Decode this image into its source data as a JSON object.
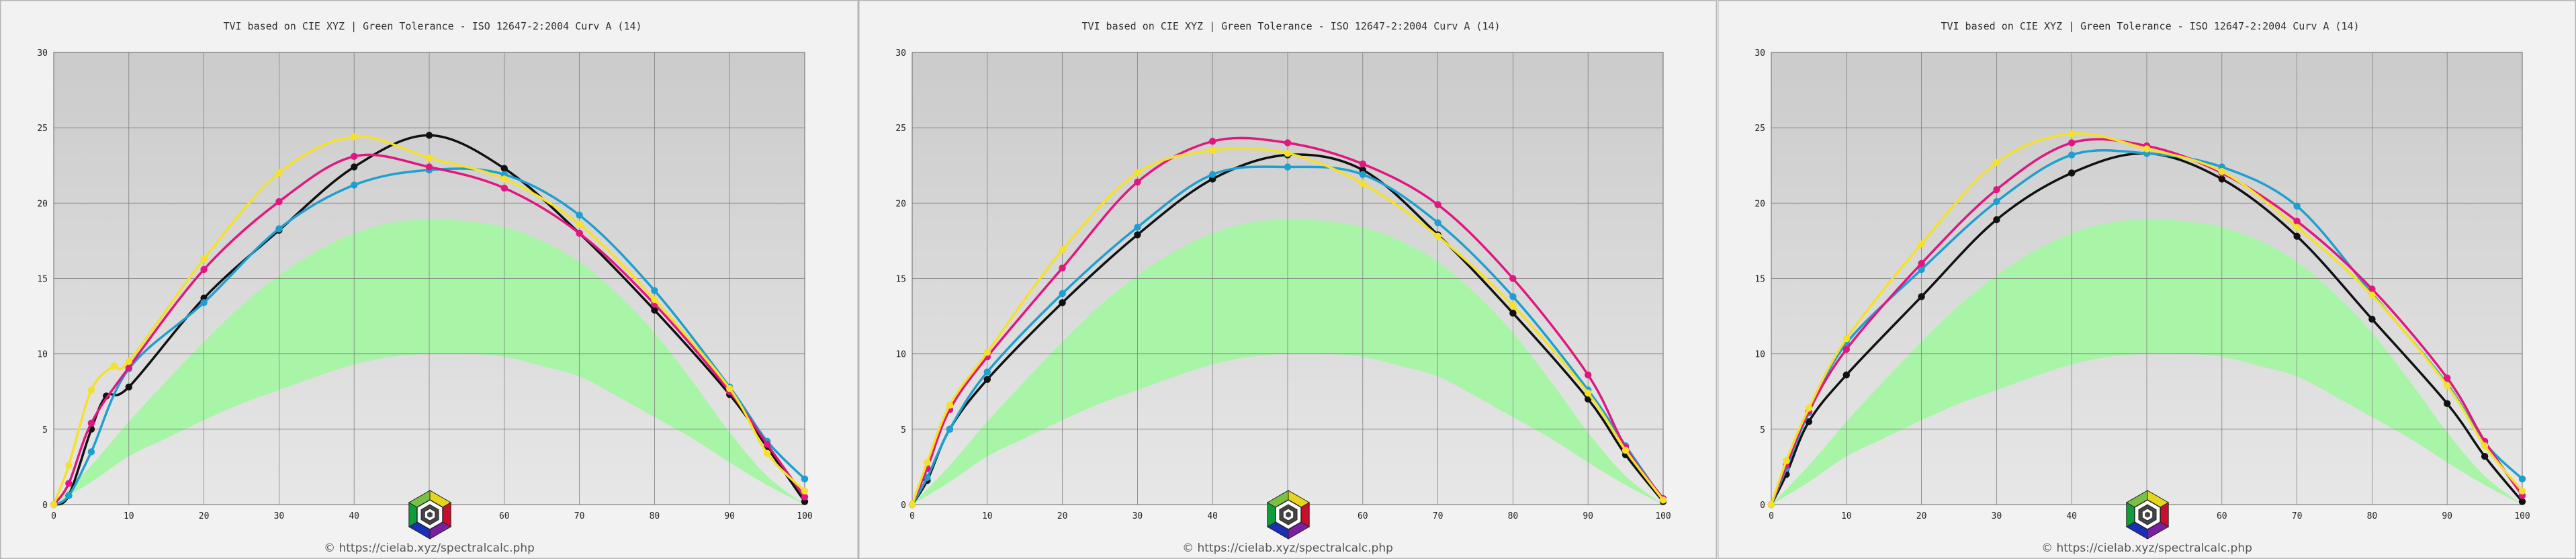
{
  "colors": {
    "cyan": "#1f9fd0",
    "magenta": "#e0177f",
    "yellow": "#f4e12a",
    "black": "#111111",
    "tolerance_band": "#a8f5a8",
    "plot_bg_top": "#cbcbcb",
    "plot_bg_bottom": "#e7e7e7"
  },
  "logo": {
    "icon": "hexagon-cmy-rgb-logo-icon"
  },
  "chart_data": [
    {
      "type": "line",
      "title": "TVI based on CIE XYZ  |  Green Tolerance - ISO 12647-2:2004 Curv A (14)",
      "copyright": "© https://cielab.xyz/spectralcalc.php",
      "xlim": [
        0,
        100
      ],
      "ylim": [
        0,
        30
      ],
      "x_ticks": [
        "0",
        "10",
        "20",
        "30",
        "40",
        "50",
        "60",
        "70",
        "80",
        "90",
        "100"
      ],
      "y_ticks": [
        "0",
        "5",
        "10",
        "15",
        "20",
        "25",
        "30"
      ],
      "grid": true,
      "tolerance_band": {
        "x": [
          0,
          5,
          10,
          15,
          20,
          25,
          30,
          35,
          40,
          45,
          50,
          55,
          60,
          65,
          70,
          75,
          80,
          85,
          90,
          95,
          100
        ],
        "lower": [
          0,
          1.5,
          3.2,
          4.4,
          5.6,
          6.7,
          7.6,
          8.5,
          9.3,
          9.8,
          10.0,
          10.0,
          9.8,
          9.2,
          8.5,
          7.2,
          5.8,
          4.4,
          2.8,
          1.3,
          0
        ],
        "upper": [
          0,
          2.6,
          5.5,
          8.2,
          10.8,
          13.2,
          15.2,
          16.8,
          18.0,
          18.7,
          18.9,
          18.8,
          18.4,
          17.5,
          16.1,
          14.0,
          11.4,
          8.2,
          4.8,
          1.9,
          0
        ]
      },
      "series": [
        {
          "color_key": "black",
          "x": [
            0,
            2,
            5,
            7,
            10,
            20,
            30,
            40,
            50,
            60,
            70,
            80,
            90,
            95,
            100
          ],
          "y": [
            0,
            0.6,
            5.0,
            7.2,
            7.8,
            13.7,
            18.2,
            22.4,
            24.5,
            22.3,
            18.0,
            12.9,
            7.3,
            3.8,
            0.2
          ]
        },
        {
          "color_key": "cyan",
          "x": [
            0,
            2,
            5,
            10,
            20,
            30,
            40,
            50,
            60,
            70,
            80,
            90,
            95,
            100
          ],
          "y": [
            0,
            0.6,
            3.5,
            9.0,
            13.4,
            18.3,
            21.2,
            22.2,
            21.9,
            19.2,
            14.2,
            7.8,
            4.2,
            1.7
          ]
        },
        {
          "color_key": "magenta",
          "x": [
            0,
            2,
            5,
            10,
            20,
            30,
            40,
            50,
            60,
            70,
            80,
            90,
            95,
            100
          ],
          "y": [
            0,
            1.4,
            5.4,
            9.1,
            15.6,
            20.1,
            23.1,
            22.4,
            21.0,
            18.0,
            13.3,
            7.5,
            4.0,
            0.5
          ]
        },
        {
          "color_key": "yellow",
          "x": [
            0,
            2,
            5,
            8,
            10,
            20,
            30,
            40,
            50,
            60,
            70,
            80,
            90,
            95,
            100
          ],
          "y": [
            0,
            2.6,
            7.6,
            9.2,
            9.5,
            16.3,
            22.0,
            24.4,
            23.0,
            21.6,
            18.6,
            13.6,
            7.7,
            3.4,
            0.9
          ]
        }
      ]
    },
    {
      "type": "line",
      "title": "TVI based on CIE XYZ  |  Green Tolerance - ISO 12647-2:2004 Curv A (14)",
      "copyright": "© https://cielab.xyz/spectralcalc.php",
      "xlim": [
        0,
        100
      ],
      "ylim": [
        0,
        30
      ],
      "x_ticks": [
        "0",
        "10",
        "20",
        "30",
        "40",
        "50",
        "60",
        "70",
        "80",
        "90",
        "100"
      ],
      "y_ticks": [
        "0",
        "5",
        "10",
        "15",
        "20",
        "25",
        "30"
      ],
      "grid": true,
      "tolerance_band": {
        "x": [
          0,
          5,
          10,
          15,
          20,
          25,
          30,
          35,
          40,
          45,
          50,
          55,
          60,
          65,
          70,
          75,
          80,
          85,
          90,
          95,
          100
        ],
        "lower": [
          0,
          1.5,
          3.2,
          4.4,
          5.6,
          6.7,
          7.6,
          8.5,
          9.3,
          9.8,
          10.0,
          10.0,
          9.8,
          9.2,
          8.5,
          7.2,
          5.8,
          4.4,
          2.8,
          1.3,
          0
        ],
        "upper": [
          0,
          2.6,
          5.5,
          8.2,
          10.8,
          13.2,
          15.2,
          16.8,
          18.0,
          18.7,
          18.9,
          18.8,
          18.4,
          17.5,
          16.1,
          14.0,
          11.4,
          8.2,
          4.8,
          1.9,
          0
        ]
      },
      "series": [
        {
          "color_key": "black",
          "x": [
            0,
            2,
            5,
            10,
            20,
            30,
            40,
            50,
            60,
            70,
            80,
            90,
            95,
            100
          ],
          "y": [
            0,
            1.6,
            5.0,
            8.3,
            13.4,
            17.9,
            21.6,
            23.2,
            22.2,
            17.9,
            12.7,
            7.0,
            3.3,
            0.2
          ]
        },
        {
          "color_key": "cyan",
          "x": [
            0,
            2,
            5,
            10,
            20,
            30,
            40,
            50,
            60,
            70,
            80,
            90,
            95,
            100
          ],
          "y": [
            0,
            1.8,
            5.0,
            8.8,
            14.0,
            18.4,
            21.9,
            22.4,
            21.9,
            18.7,
            13.8,
            7.6,
            3.9,
            0.3
          ]
        },
        {
          "color_key": "magenta",
          "x": [
            0,
            2,
            5,
            10,
            20,
            30,
            40,
            50,
            60,
            70,
            80,
            90,
            95,
            100
          ],
          "y": [
            0,
            2.4,
            6.3,
            9.8,
            15.7,
            21.4,
            24.1,
            24.0,
            22.6,
            19.9,
            15.0,
            8.6,
            3.8,
            0.4
          ]
        },
        {
          "color_key": "yellow",
          "x": [
            0,
            2,
            5,
            10,
            20,
            30,
            40,
            50,
            60,
            70,
            80,
            90,
            95,
            100
          ],
          "y": [
            0,
            2.8,
            6.6,
            10.1,
            16.9,
            22.0,
            23.5,
            23.3,
            21.3,
            17.8,
            13.2,
            7.4,
            3.6,
            0.3
          ]
        }
      ]
    },
    {
      "type": "line",
      "title": "TVI based on CIE XYZ  |  Green Tolerance - ISO 12647-2:2004 Curv A (14)",
      "copyright": "© https://cielab.xyz/spectralcalc.php",
      "xlim": [
        0,
        100
      ],
      "ylim": [
        0,
        30
      ],
      "x_ticks": [
        "0",
        "10",
        "20",
        "30",
        "40",
        "50",
        "60",
        "70",
        "80",
        "90",
        "100"
      ],
      "y_ticks": [
        "0",
        "5",
        "10",
        "15",
        "20",
        "25",
        "30"
      ],
      "grid": true,
      "tolerance_band": {
        "x": [
          0,
          5,
          10,
          15,
          20,
          25,
          30,
          35,
          40,
          45,
          50,
          55,
          60,
          65,
          70,
          75,
          80,
          85,
          90,
          95,
          100
        ],
        "lower": [
          0,
          1.5,
          3.2,
          4.4,
          5.6,
          6.7,
          7.6,
          8.5,
          9.3,
          9.8,
          10.0,
          10.0,
          9.8,
          9.2,
          8.5,
          7.2,
          5.8,
          4.4,
          2.8,
          1.3,
          0
        ],
        "upper": [
          0,
          2.6,
          5.5,
          8.2,
          10.8,
          13.2,
          15.2,
          16.8,
          18.0,
          18.7,
          18.9,
          18.8,
          18.4,
          17.5,
          16.1,
          14.0,
          11.4,
          8.2,
          4.8,
          1.9,
          0
        ]
      },
      "series": [
        {
          "color_key": "black",
          "x": [
            0,
            2,
            5,
            10,
            20,
            30,
            40,
            50,
            60,
            70,
            80,
            90,
            95,
            100
          ],
          "y": [
            0,
            2.0,
            5.5,
            8.6,
            13.8,
            18.9,
            22.0,
            23.3,
            21.6,
            17.8,
            12.3,
            6.7,
            3.2,
            0.2
          ]
        },
        {
          "color_key": "cyan",
          "x": [
            0,
            2,
            5,
            10,
            20,
            30,
            40,
            50,
            60,
            70,
            80,
            90,
            95,
            100
          ],
          "y": [
            0,
            2.4,
            6.1,
            10.7,
            15.6,
            20.1,
            23.2,
            23.3,
            22.4,
            19.8,
            14.0,
            8.0,
            4.1,
            1.7
          ]
        },
        {
          "color_key": "magenta",
          "x": [
            0,
            2,
            5,
            10,
            20,
            30,
            40,
            50,
            60,
            70,
            80,
            90,
            95,
            100
          ],
          "y": [
            0,
            2.6,
            6.2,
            10.3,
            16.0,
            20.9,
            24.0,
            23.8,
            22.0,
            18.8,
            14.3,
            8.4,
            4.2,
            0.6
          ]
        },
        {
          "color_key": "yellow",
          "x": [
            0,
            2,
            5,
            10,
            20,
            30,
            40,
            50,
            60,
            70,
            80,
            90,
            95,
            100
          ],
          "y": [
            0,
            2.9,
            6.4,
            11.0,
            17.3,
            22.7,
            24.6,
            23.6,
            22.1,
            18.4,
            13.9,
            7.9,
            3.9,
            0.9
          ]
        }
      ]
    }
  ]
}
